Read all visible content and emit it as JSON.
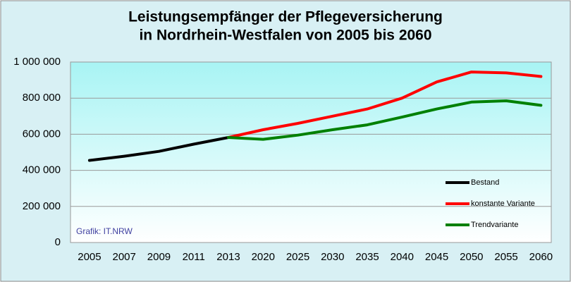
{
  "chart_data": {
    "type": "line",
    "title": [
      "Leistungsempfänger der Pflegeversicherung",
      "in Nordrhein-Westfalen von 2005 bis 2060"
    ],
    "annotation": "Grafik: IT.NRW",
    "categories": [
      "2005",
      "2007",
      "2009",
      "2011",
      "2013",
      "2020",
      "2025",
      "2030",
      "2035",
      "2040",
      "2045",
      "2050",
      "2055",
      "2060"
    ],
    "series": [
      {
        "name": "Bestand",
        "color": "#000000",
        "values": [
          455000,
          478000,
          505000,
          545000,
          582000,
          null,
          null,
          null,
          null,
          null,
          null,
          null,
          null,
          null
        ]
      },
      {
        "name": "konstante Variante",
        "color": "#ff0000",
        "values": [
          null,
          null,
          null,
          null,
          582000,
          625000,
          660000,
          700000,
          740000,
          800000,
          890000,
          945000,
          940000,
          920000
        ]
      },
      {
        "name": "Trendvariante",
        "color": "#008000",
        "values": [
          null,
          null,
          null,
          null,
          582000,
          572000,
          595000,
          625000,
          652000,
          695000,
          740000,
          778000,
          785000,
          760000
        ]
      }
    ],
    "ylim": [
      0,
      1000000
    ],
    "yticks": [
      0,
      {
        "value": 200000,
        "label": "200 000"
      },
      {
        "value": 400000,
        "label": "400 000"
      },
      {
        "value": 600000,
        "label": "600 000"
      },
      {
        "value": 800000,
        "label": "800 000"
      },
      {
        "value": 1000000,
        "label": "1 000 000"
      }
    ],
    "grid": true,
    "legend": "right"
  }
}
